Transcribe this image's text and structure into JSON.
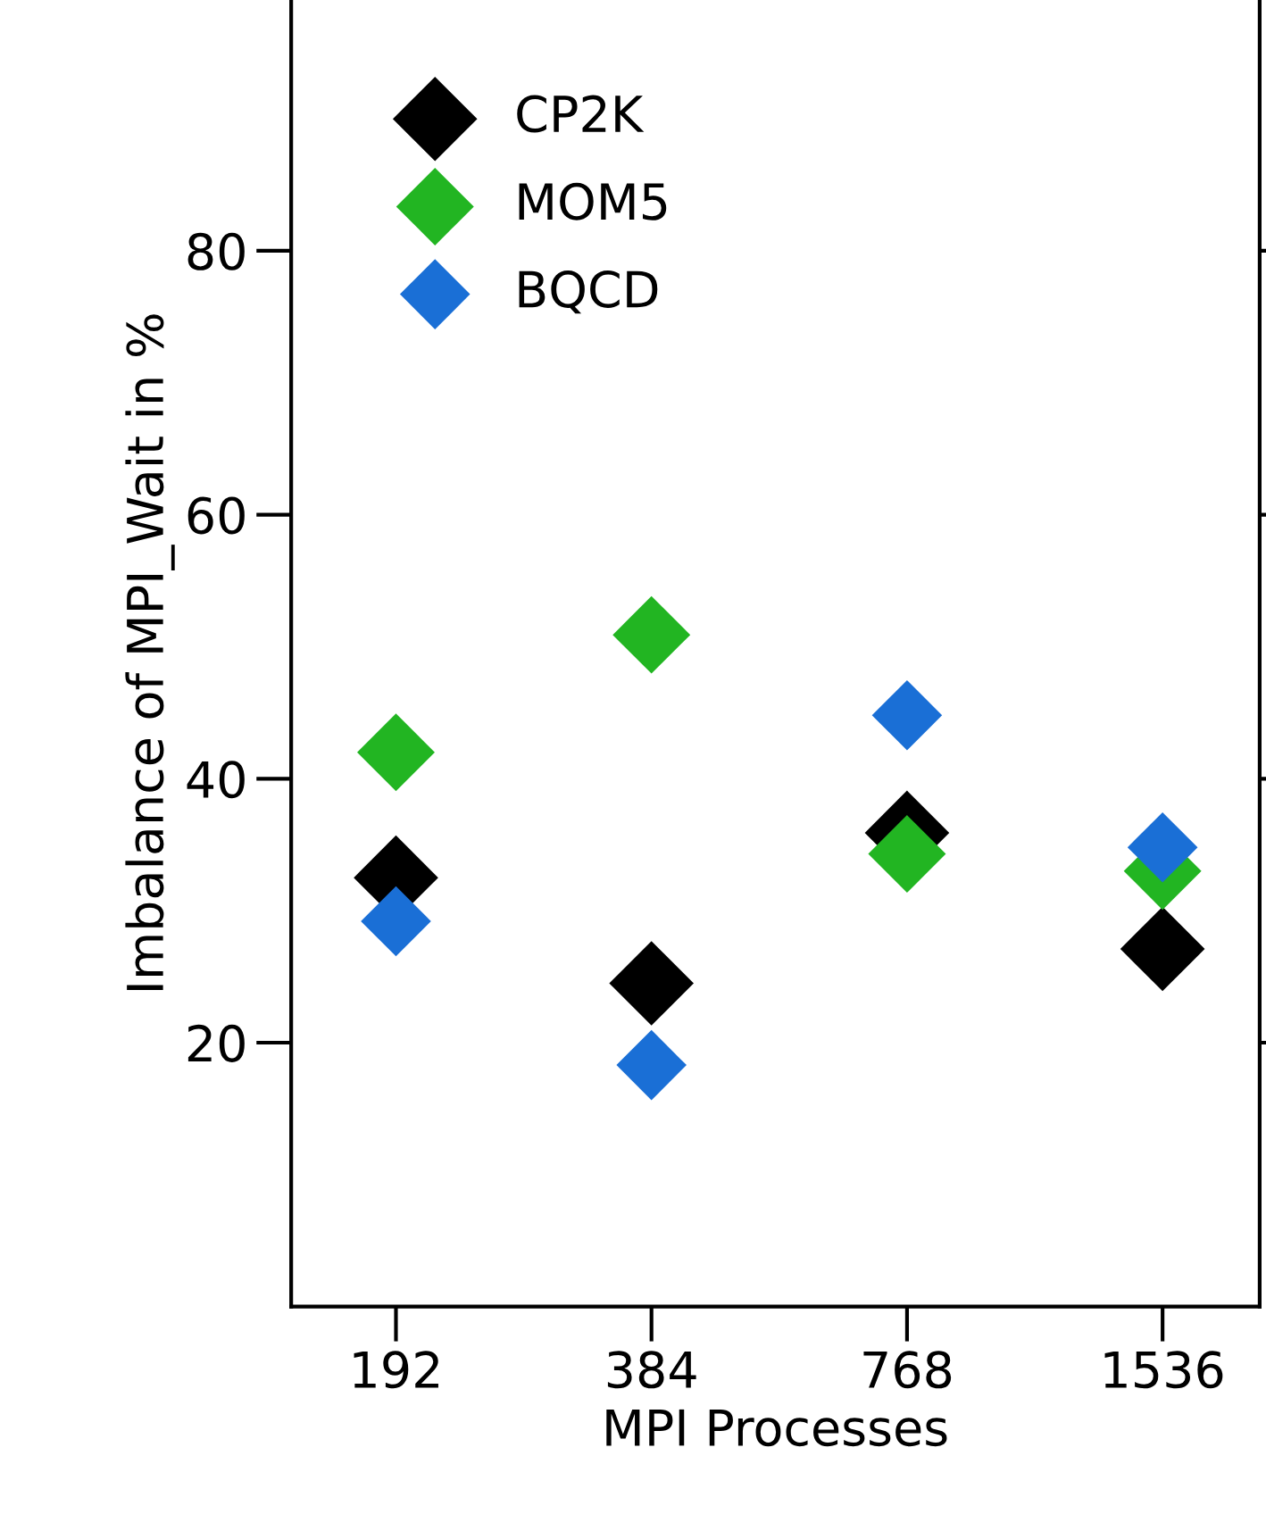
{
  "chart_data": {
    "type": "scatter",
    "xlabel": "MPI Processes",
    "ylabel": "Imbalance of MPI_Wait in %",
    "categories": [
      "192",
      "384",
      "768",
      "1536"
    ],
    "series": [
      {
        "name": "CP2K",
        "color": "#000000",
        "values": [
          32.5,
          24.5,
          35.9,
          27.1
        ]
      },
      {
        "name": "MOM5",
        "color": "#22b522",
        "values": [
          42.0,
          50.9,
          34.3,
          33.0
        ]
      },
      {
        "name": "BQCD",
        "color": "#1a6fd6",
        "values": [
          29.2,
          18.3,
          44.8,
          34.8
        ]
      }
    ],
    "ylim": [
      0,
      99
    ],
    "yticks": [
      20,
      40,
      60,
      80
    ],
    "marker": "diamond",
    "legend": "top left",
    "grid": false
  }
}
